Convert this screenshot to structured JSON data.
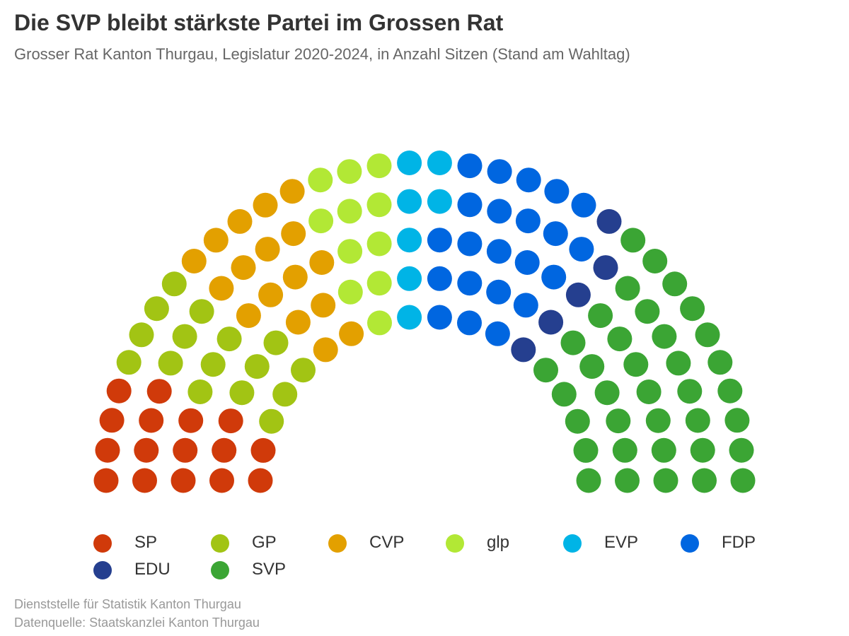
{
  "title": "Die SVP bleibt stärkste Partei im Grossen Rat",
  "subtitle": "Grosser Rat Kanton Thurgau, Legislatur 2020-2024, in Anzahl Sitzen (Stand am Wahltag)",
  "credits": {
    "line1": "Dienststelle für Statistik Kanton Thurgau",
    "line2": "Datenquelle: Staatskanzlei Kanton Thurgau"
  },
  "chart_data": {
    "type": "parliament",
    "total_seats": 130,
    "series": [
      {
        "name": "SP",
        "value": 16,
        "color": "#D03A0A"
      },
      {
        "name": "GP",
        "value": 16,
        "color": "#A2C414"
      },
      {
        "name": "CVP",
        "value": 17,
        "color": "#E3A000"
      },
      {
        "name": "glp",
        "value": 11,
        "color": "#B2E835"
      },
      {
        "name": "EVP",
        "value": 7,
        "color": "#00B4E6"
      },
      {
        "name": "FDP",
        "value": 22,
        "color": "#0066E0"
      },
      {
        "name": "EDU",
        "value": 5,
        "color": "#253F8F"
      },
      {
        "name": "SVP",
        "value": 36,
        "color": "#3BA534"
      }
    ],
    "legend_position": "bottom"
  }
}
